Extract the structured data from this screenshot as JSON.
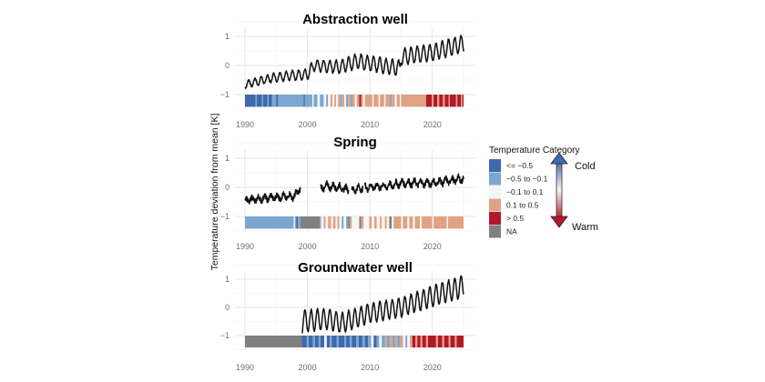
{
  "chart_data": [
    {
      "type": "line",
      "title": "Abstraction well",
      "xlabel": "",
      "ylabel": "Temperature deviation from mean [K]",
      "xlim": [
        1990,
        2025
      ],
      "ylim": [
        -1.5,
        1.3
      ],
      "x_ticks": [
        "1990",
        "2000",
        "2010",
        "2020"
      ],
      "y_ticks": [
        "1",
        "0",
        "−1"
      ],
      "grid": true,
      "series_model": {
        "description": "monthly temperature deviation, seasonal oscillation around trend",
        "start": 1990,
        "end": 2025,
        "trend": [
          [
            1990,
            -0.65
          ],
          [
            1995,
            -0.4
          ],
          [
            2000,
            -0.3
          ],
          [
            2001,
            0.0
          ],
          [
            2005,
            -0.05
          ],
          [
            2008,
            0.15
          ],
          [
            2014.8,
            -0.1
          ],
          [
            2015,
            0.3
          ],
          [
            2020,
            0.45
          ],
          [
            2025,
            0.75
          ]
        ],
        "amplitude": [
          [
            1990,
            0.12
          ],
          [
            2000,
            0.18
          ],
          [
            2008,
            0.25
          ],
          [
            2025,
            0.3
          ]
        ],
        "gaps": []
      },
      "stripes": [
        [
          1990,
          1991.7,
          "c1"
        ],
        [
          1991.7,
          1991.9,
          "c2"
        ],
        [
          1991.9,
          1992.7,
          "c1"
        ],
        [
          1992.7,
          1992.9,
          "c2"
        ],
        [
          1992.9,
          1993.6,
          "c1"
        ],
        [
          1993.6,
          1993.8,
          "c2"
        ],
        [
          1993.8,
          1994.3,
          "c1"
        ],
        [
          1994.3,
          1995.0,
          "c2"
        ],
        [
          1995.0,
          1995.3,
          "c1"
        ],
        [
          1995.3,
          1999.4,
          "c2"
        ],
        [
          1999.4,
          1999.6,
          "c1"
        ],
        [
          1999.6,
          2000.8,
          "c2"
        ],
        [
          2000.8,
          2001.0,
          "c3"
        ],
        [
          2001.0,
          2001.6,
          "c2"
        ],
        [
          2001.6,
          2002.0,
          "c3"
        ],
        [
          2002.0,
          2002.6,
          "c2"
        ],
        [
          2002.6,
          2003.0,
          "c3"
        ],
        [
          2003.0,
          2003.3,
          "c2"
        ],
        [
          2003.3,
          2003.7,
          "c3"
        ],
        [
          2003.7,
          2004.0,
          "c4"
        ],
        [
          2004.0,
          2004.3,
          "c3"
        ],
        [
          2004.3,
          2004.6,
          "c4"
        ],
        [
          2004.6,
          2004.9,
          "c3"
        ],
        [
          2004.9,
          2005.2,
          "c4"
        ],
        [
          2005.2,
          2005.5,
          "c2"
        ],
        [
          2005.5,
          2005.9,
          "c4"
        ],
        [
          2005.9,
          2006.2,
          "c3"
        ],
        [
          2006.2,
          2006.5,
          "c2"
        ],
        [
          2006.5,
          2006.9,
          "c4"
        ],
        [
          2006.9,
          2007.2,
          "c2"
        ],
        [
          2007.2,
          2007.6,
          "c4"
        ],
        [
          2007.6,
          2007.9,
          "c3"
        ],
        [
          2007.9,
          2008.3,
          "c4"
        ],
        [
          2008.3,
          2008.6,
          "c5"
        ],
        [
          2008.6,
          2008.9,
          "c4"
        ],
        [
          2008.9,
          2009.2,
          "c3"
        ],
        [
          2009.2,
          2010.4,
          "c4"
        ],
        [
          2010.4,
          2010.6,
          "c3"
        ],
        [
          2010.6,
          2011.4,
          "c4"
        ],
        [
          2011.4,
          2011.6,
          "c3"
        ],
        [
          2011.6,
          2012.3,
          "c4"
        ],
        [
          2012.3,
          2012.5,
          "c3"
        ],
        [
          2012.5,
          2013.2,
          "c4"
        ],
        [
          2013.2,
          2013.5,
          "c2"
        ],
        [
          2013.5,
          2014.0,
          "c4"
        ],
        [
          2014.0,
          2014.3,
          "c3"
        ],
        [
          2014.3,
          2014.8,
          "c4"
        ],
        [
          2014.8,
          2015.0,
          "c3"
        ],
        [
          2015.0,
          2019.0,
          "c4"
        ],
        [
          2019.0,
          2019.9,
          "c5"
        ],
        [
          2019.9,
          2020.2,
          "c4"
        ],
        [
          2020.2,
          2020.8,
          "c5"
        ],
        [
          2020.8,
          2021.1,
          "c4"
        ],
        [
          2021.1,
          2021.7,
          "c5"
        ],
        [
          2021.7,
          2022.0,
          "c4"
        ],
        [
          2022.0,
          2022.6,
          "c5"
        ],
        [
          2022.6,
          2022.8,
          "c4"
        ],
        [
          2022.8,
          2023.8,
          "c5"
        ],
        [
          2023.8,
          2024.0,
          "c4"
        ],
        [
          2024.0,
          2024.6,
          "c5"
        ],
        [
          2024.6,
          2024.8,
          "c4"
        ],
        [
          2024.8,
          2025.0,
          "c5"
        ]
      ]
    },
    {
      "type": "line",
      "title": "Spring",
      "xlabel": "",
      "ylabel": "Temperature deviation from mean [K]",
      "xlim": [
        1990,
        2025
      ],
      "ylim": [
        -1.5,
        1.3
      ],
      "x_ticks": [
        "1990",
        "2000",
        "2010",
        "2020"
      ],
      "y_ticks": [
        "1",
        "0",
        "−1"
      ],
      "grid": true,
      "series_model": {
        "description": "monthly temperature deviation, small irregular oscillation, data gaps",
        "start": 1990,
        "end": 2025,
        "trend": [
          [
            1990,
            -0.45
          ],
          [
            1994,
            -0.35
          ],
          [
            1998,
            -0.3
          ],
          [
            1998.9,
            0.0
          ],
          [
            2002.2,
            -0.05
          ],
          [
            2003,
            0.05
          ],
          [
            2005,
            0.0
          ],
          [
            2007,
            -0.1
          ],
          [
            2009,
            0.0
          ],
          [
            2013,
            0.05
          ],
          [
            2015,
            0.15
          ],
          [
            2020,
            0.15
          ],
          [
            2025,
            0.3
          ]
        ],
        "amplitude": [
          [
            1990,
            0.09
          ],
          [
            2025,
            0.1
          ]
        ],
        "gaps": [
          [
            1998.9,
            2002.1
          ],
          [
            2006.6,
            2007.1
          ],
          [
            2008.9,
            2009.2
          ]
        ]
      },
      "stripes": [
        [
          1990,
          1997.8,
          "c2"
        ],
        [
          1997.8,
          1998.0,
          "c3"
        ],
        [
          1998.0,
          1998.2,
          "c2"
        ],
        [
          1998.2,
          1998.5,
          "c1"
        ],
        [
          1998.5,
          1998.9,
          "c2"
        ],
        [
          1998.9,
          2002.0,
          "c6"
        ],
        [
          2002.0,
          2002.2,
          "c2"
        ],
        [
          2002.2,
          2002.6,
          "c3"
        ],
        [
          2002.6,
          2002.9,
          "c4"
        ],
        [
          2002.9,
          2003.3,
          "c3"
        ],
        [
          2003.3,
          2003.8,
          "c4"
        ],
        [
          2003.8,
          2004.1,
          "c3"
        ],
        [
          2004.1,
          2004.5,
          "c4"
        ],
        [
          2004.5,
          2004.8,
          "c3"
        ],
        [
          2004.8,
          2005.1,
          "c4"
        ],
        [
          2005.1,
          2005.5,
          "c3"
        ],
        [
          2005.5,
          2005.8,
          "c2"
        ],
        [
          2005.8,
          2006.2,
          "c3"
        ],
        [
          2006.2,
          2006.5,
          "c2"
        ],
        [
          2006.5,
          2006.8,
          "c6"
        ],
        [
          2006.8,
          2007.1,
          "c4"
        ],
        [
          2007.1,
          2008.3,
          "c3"
        ],
        [
          2008.3,
          2008.6,
          "c6"
        ],
        [
          2008.6,
          2009.0,
          "c4"
        ],
        [
          2009.0,
          2009.9,
          "c3"
        ],
        [
          2009.9,
          2010.3,
          "c4"
        ],
        [
          2010.3,
          2010.7,
          "c3"
        ],
        [
          2010.7,
          2011.1,
          "c4"
        ],
        [
          2011.1,
          2011.6,
          "c3"
        ],
        [
          2011.6,
          2011.9,
          "c4"
        ],
        [
          2011.9,
          2012.4,
          "c3"
        ],
        [
          2012.4,
          2012.7,
          "c4"
        ],
        [
          2012.7,
          2013.1,
          "c3"
        ],
        [
          2013.1,
          2013.5,
          "c6"
        ],
        [
          2013.5,
          2013.8,
          "c3"
        ],
        [
          2013.8,
          2015.0,
          "c4"
        ],
        [
          2015.0,
          2015.3,
          "c3"
        ],
        [
          2015.3,
          2016.0,
          "c4"
        ],
        [
          2016.0,
          2016.3,
          "c3"
        ],
        [
          2016.3,
          2016.9,
          "c4"
        ],
        [
          2016.9,
          2017.2,
          "c3"
        ],
        [
          2017.2,
          2018.0,
          "c4"
        ],
        [
          2018.0,
          2018.3,
          "c3"
        ],
        [
          2018.3,
          2020.0,
          "c4"
        ],
        [
          2020.0,
          2020.2,
          "c3"
        ],
        [
          2020.2,
          2022.3,
          "c4"
        ],
        [
          2022.3,
          2022.5,
          "c3"
        ],
        [
          2022.5,
          2025.0,
          "c4"
        ]
      ]
    },
    {
      "type": "line",
      "title": "Groundwater well",
      "xlabel": "",
      "ylabel": "Temperature deviation from mean [K]",
      "xlim": [
        1990,
        2025
      ],
      "ylim": [
        -1.5,
        1.3
      ],
      "x_ticks": [
        "1990",
        "2000",
        "2010",
        "2020"
      ],
      "y_ticks": [
        "1",
        "0",
        "−1"
      ],
      "grid": true,
      "series_model": {
        "description": "monthly temperature deviation, large seasonal oscillation, starts 1999",
        "start": 1999.1,
        "end": 2025,
        "trend": [
          [
            1999.1,
            -0.5
          ],
          [
            2003,
            -0.4
          ],
          [
            2005.5,
            -0.55
          ],
          [
            2010,
            -0.2
          ],
          [
            2015,
            0.0
          ],
          [
            2020,
            0.4
          ],
          [
            2025,
            0.75
          ]
        ],
        "amplitude": [
          [
            1999.1,
            0.4
          ],
          [
            2005,
            0.35
          ],
          [
            2015,
            0.33
          ],
          [
            2025,
            0.4
          ]
        ],
        "gaps": []
      },
      "stripes": [
        [
          1990,
          1999.1,
          "c6"
        ],
        [
          1999.1,
          1999.9,
          "c1"
        ],
        [
          1999.9,
          2000.2,
          "c2"
        ],
        [
          2000.2,
          2000.9,
          "c1"
        ],
        [
          2000.9,
          2001.2,
          "c2"
        ],
        [
          2001.2,
          2001.8,
          "c1"
        ],
        [
          2001.8,
          2002.1,
          "c2"
        ],
        [
          2002.1,
          2002.7,
          "c1"
        ],
        [
          2002.7,
          2003.1,
          "c3"
        ],
        [
          2003.1,
          2003.6,
          "c1"
        ],
        [
          2003.6,
          2003.9,
          "c2"
        ],
        [
          2003.9,
          2004.7,
          "c1"
        ],
        [
          2004.7,
          2005.0,
          "c2"
        ],
        [
          2005.0,
          2005.9,
          "c1"
        ],
        [
          2005.9,
          2006.2,
          "c2"
        ],
        [
          2006.2,
          2006.8,
          "c1"
        ],
        [
          2006.8,
          2007.1,
          "c2"
        ],
        [
          2007.1,
          2007.8,
          "c1"
        ],
        [
          2007.8,
          2008.2,
          "c2"
        ],
        [
          2008.2,
          2008.8,
          "c1"
        ],
        [
          2008.8,
          2009.2,
          "c2"
        ],
        [
          2009.2,
          2009.7,
          "c1"
        ],
        [
          2009.7,
          2010.2,
          "c2"
        ],
        [
          2010.2,
          2010.6,
          "c3"
        ],
        [
          2010.6,
          2011.1,
          "c1"
        ],
        [
          2011.1,
          2011.5,
          "c2"
        ],
        [
          2011.5,
          2011.9,
          "c3"
        ],
        [
          2011.9,
          2012.4,
          "c2"
        ],
        [
          2012.4,
          2012.7,
          "c4"
        ],
        [
          2012.7,
          2013.2,
          "c2"
        ],
        [
          2013.2,
          2013.6,
          "c4"
        ],
        [
          2013.6,
          2014.0,
          "c2"
        ],
        [
          2014.0,
          2014.4,
          "c4"
        ],
        [
          2014.4,
          2014.9,
          "c2"
        ],
        [
          2014.9,
          2015.3,
          "c4"
        ],
        [
          2015.3,
          2015.7,
          "c3"
        ],
        [
          2015.7,
          2016.0,
          "c2"
        ],
        [
          2016.0,
          2016.4,
          "c3"
        ],
        [
          2016.4,
          2016.8,
          "c4"
        ],
        [
          2016.8,
          2017.3,
          "c5"
        ],
        [
          2017.3,
          2017.6,
          "c4"
        ],
        [
          2017.6,
          2018.1,
          "c5"
        ],
        [
          2018.1,
          2018.4,
          "c4"
        ],
        [
          2018.4,
          2019.0,
          "c5"
        ],
        [
          2019.0,
          2019.3,
          "c4"
        ],
        [
          2019.3,
          2020.6,
          "c5"
        ],
        [
          2020.6,
          2020.9,
          "c4"
        ],
        [
          2020.9,
          2021.6,
          "c5"
        ],
        [
          2021.6,
          2021.9,
          "c4"
        ],
        [
          2021.9,
          2022.6,
          "c5"
        ],
        [
          2022.6,
          2022.9,
          "c4"
        ],
        [
          2022.9,
          2023.6,
          "c5"
        ],
        [
          2023.6,
          2023.9,
          "c4"
        ],
        [
          2023.9,
          2025.0,
          "c5"
        ]
      ]
    }
  ],
  "legend": {
    "title": "Temperature Category",
    "placement": "right",
    "items": [
      {
        "key": "c1",
        "label": "<= −0.5",
        "color": "#3f69ad"
      },
      {
        "key": "c2",
        "label": "−0.5 to −0.1",
        "color": "#7ba7d0"
      },
      {
        "key": "c3",
        "label": "−0.1 to 0.1",
        "color": "#f5f5f5"
      },
      {
        "key": "c4",
        "label": "0.1 to 0.5",
        "color": "#e0a283"
      },
      {
        "key": "c5",
        "label": "> 0.5",
        "color": "#b2182b"
      },
      {
        "key": "c6",
        "label": "NA",
        "color": "#808080"
      }
    ],
    "arrow": {
      "top_label": "Cold",
      "bottom_label": "Warm",
      "top_color": "#3f69ad",
      "bottom_color": "#b2182b"
    }
  },
  "shared": {
    "ylabel": "Temperature deviation from mean [K]"
  }
}
